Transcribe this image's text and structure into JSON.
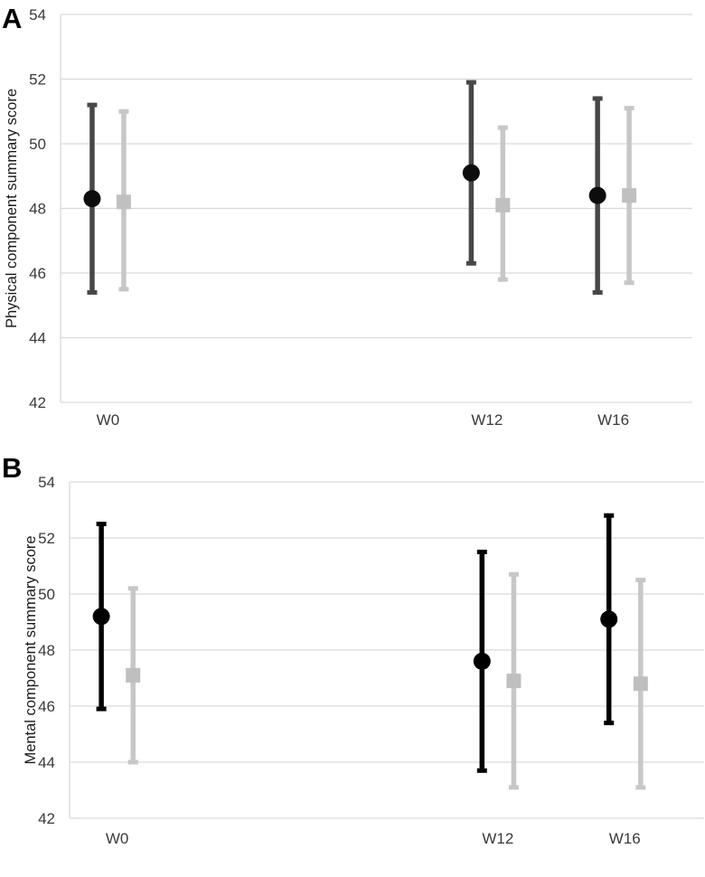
{
  "figure": {
    "background": "#ffffff",
    "panels": [
      {
        "label": "A"
      },
      {
        "label": "B"
      }
    ]
  },
  "colors": {
    "gridline": "#d9d9d9",
    "axis_line": "#d9d9d9",
    "tick_text": "#3a3a3a",
    "axis_title_text": "#1a1a1a",
    "panel_letter": "#000000",
    "dark_series": "#474747",
    "black_series": "#000000",
    "light_series": "#c0c0c0"
  },
  "chart_data": [
    {
      "type": "scatter",
      "panel_label": "A",
      "title": "",
      "xlabel": "",
      "ylabel": "Physical component summary score",
      "categories": [
        "W0",
        "W12",
        "W16"
      ],
      "x_weeks": [
        0,
        12,
        16
      ],
      "xlim": [
        -1.5,
        18.5
      ],
      "ylim": [
        42,
        54
      ],
      "yticks": [
        42,
        44,
        46,
        48,
        50,
        52,
        54
      ],
      "grid": true,
      "legend_position": "none",
      "series": [
        {
          "name": "dark-circle",
          "marker": "circle",
          "marker_color": "#0d0d0d",
          "line_color": "#474747",
          "x_offset_weeks": -0.5,
          "means": [
            48.3,
            49.1,
            48.4
          ],
          "ci_lower": [
            45.4,
            46.3,
            45.4
          ],
          "ci_upper": [
            51.2,
            51.9,
            51.4
          ]
        },
        {
          "name": "light-square",
          "marker": "square",
          "marker_color": "#c0c0c0",
          "line_color": "#c7c7c7",
          "x_offset_weeks": 0.5,
          "means": [
            48.2,
            48.1,
            48.4
          ],
          "ci_lower": [
            45.5,
            45.8,
            45.7
          ],
          "ci_upper": [
            51.0,
            50.5,
            51.1
          ]
        }
      ]
    },
    {
      "type": "scatter",
      "panel_label": "B",
      "title": "",
      "xlabel": "",
      "ylabel": "Mental component summary score",
      "categories": [
        "W0",
        "W12",
        "W16"
      ],
      "x_weeks": [
        0,
        12,
        16
      ],
      "xlim": [
        -1.5,
        18.5
      ],
      "ylim": [
        42,
        54
      ],
      "yticks": [
        42,
        44,
        46,
        48,
        50,
        52,
        54
      ],
      "grid": true,
      "legend_position": "none",
      "series": [
        {
          "name": "black-circle",
          "marker": "circle",
          "marker_color": "#000000",
          "line_color": "#000000",
          "x_offset_weeks": -0.5,
          "means": [
            49.2,
            47.6,
            49.1
          ],
          "ci_lower": [
            45.9,
            43.7,
            45.4
          ],
          "ci_upper": [
            52.5,
            51.5,
            52.8
          ]
        },
        {
          "name": "light-square",
          "marker": "square",
          "marker_color": "#bfbfbf",
          "line_color": "#c7c7c7",
          "x_offset_weeks": 0.5,
          "means": [
            47.1,
            46.9,
            46.8
          ],
          "ci_lower": [
            44.0,
            43.1,
            43.1
          ],
          "ci_upper": [
            50.2,
            50.7,
            50.5
          ]
        }
      ]
    }
  ]
}
